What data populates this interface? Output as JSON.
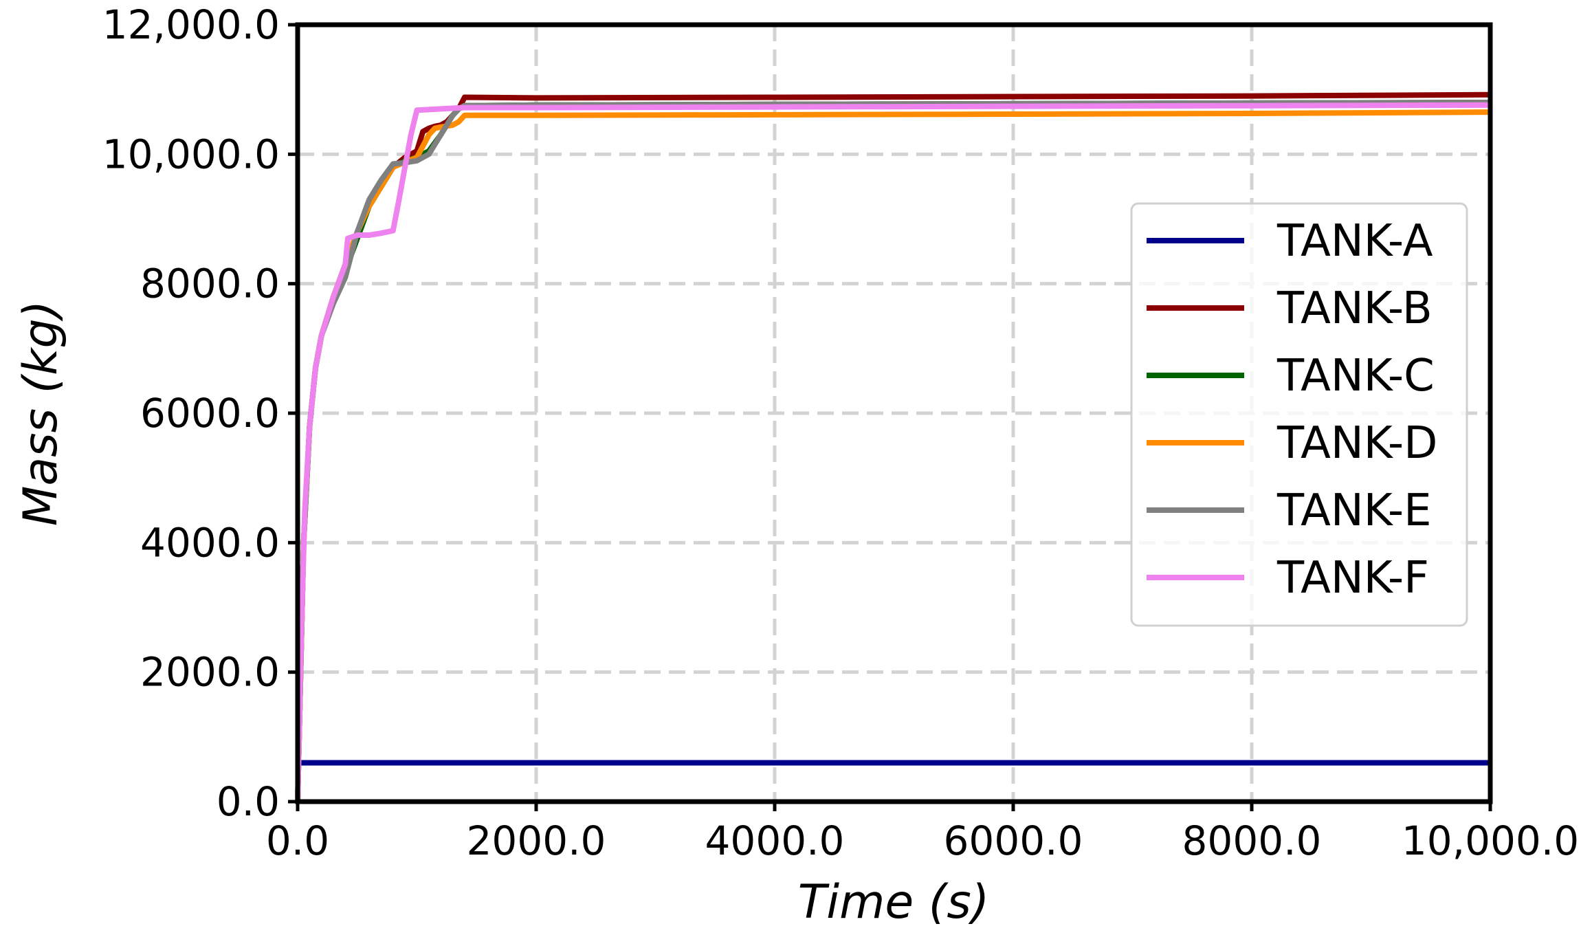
{
  "chart_data": {
    "type": "line",
    "xlabel": "Time (s)",
    "ylabel": "Mass  (kg)",
    "xlim": [
      0,
      10000
    ],
    "ylim": [
      0,
      12000
    ],
    "x_ticks": [
      0,
      2000,
      4000,
      6000,
      8000,
      10000
    ],
    "x_tick_labels": [
      "0.0",
      "2000.0",
      "4000.0",
      "6000.0",
      "8000.0",
      "10,000.0"
    ],
    "y_ticks": [
      0,
      2000,
      4000,
      6000,
      8000,
      10000,
      12000
    ],
    "y_tick_labels": [
      "0.0",
      "2000.0",
      "4000.0",
      "6000.0",
      "8000.0",
      "10,000.0",
      "12,000.0"
    ],
    "grid": true,
    "legend_position": "right",
    "series": [
      {
        "name": "TANK-A",
        "color": "#00008b",
        "x": [
          0,
          10000
        ],
        "y": [
          600,
          600
        ]
      },
      {
        "name": "TANK-B",
        "color": "#8b0000",
        "x": [
          0,
          50,
          100,
          150,
          200,
          300,
          400,
          500,
          600,
          700,
          800,
          900,
          1000,
          1050,
          1100,
          1150,
          1200,
          1250,
          1300,
          1350,
          1400,
          2000,
          4000,
          6000,
          8000,
          10000
        ],
        "y": [
          0,
          4000,
          5800,
          6700,
          7200,
          7800,
          8300,
          8800,
          9200,
          9500,
          9800,
          9950,
          10050,
          10350,
          10400,
          10430,
          10450,
          10500,
          10600,
          10700,
          10880,
          10870,
          10880,
          10890,
          10900,
          10920
        ]
      },
      {
        "name": "TANK-C",
        "color": "#006400",
        "x": [
          0,
          50,
          100,
          150,
          200,
          300,
          400,
          500,
          600,
          700,
          800,
          900,
          1000,
          1100,
          1200,
          1300,
          1350,
          1400,
          2000,
          4000,
          6000,
          8000,
          10000
        ],
        "y": [
          0,
          4000,
          5800,
          6700,
          7200,
          7800,
          8200,
          8700,
          9200,
          9500,
          9800,
          9900,
          9950,
          10050,
          10300,
          10600,
          10700,
          10750,
          10760,
          10770,
          10780,
          10790,
          10800
        ]
      },
      {
        "name": "TANK-D",
        "color": "#ff8c00",
        "x": [
          0,
          50,
          100,
          150,
          200,
          300,
          400,
          500,
          600,
          700,
          800,
          900,
          1000,
          1100,
          1150,
          1200,
          1300,
          1350,
          1400,
          2000,
          4000,
          6000,
          8000,
          10000
        ],
        "y": [
          0,
          4000,
          5800,
          6700,
          7200,
          7800,
          8300,
          8800,
          9200,
          9500,
          9800,
          9880,
          9950,
          10300,
          10400,
          10420,
          10450,
          10500,
          10600,
          10600,
          10610,
          10620,
          10630,
          10650
        ]
      },
      {
        "name": "TANK-E",
        "color": "#808080",
        "x": [
          0,
          50,
          100,
          150,
          200,
          300,
          400,
          500,
          600,
          700,
          800,
          900,
          1000,
          1100,
          1150,
          1200,
          1250,
          1300,
          1350,
          1400,
          2000,
          4000,
          6000,
          8000,
          10000
        ],
        "y": [
          0,
          4000,
          5800,
          6700,
          7200,
          7700,
          8100,
          8800,
          9300,
          9600,
          9850,
          9870,
          9900,
          10000,
          10150,
          10300,
          10450,
          10600,
          10700,
          10750,
          10760,
          10770,
          10780,
          10790,
          10800
        ]
      },
      {
        "name": "TANK-F",
        "color": "#ee82ee",
        "x": [
          0,
          30,
          60,
          100,
          150,
          200,
          300,
          400,
          420,
          500,
          600,
          700,
          800,
          850,
          900,
          950,
          1000,
          1200,
          1400,
          2000,
          4000,
          6000,
          8000,
          10000
        ],
        "y": [
          0,
          2500,
          4500,
          5800,
          6700,
          7200,
          7800,
          8300,
          8700,
          8750,
          8750,
          8780,
          8820,
          9300,
          9800,
          10300,
          10680,
          10700,
          10720,
          10720,
          10730,
          10740,
          10750,
          10760
        ]
      }
    ]
  }
}
